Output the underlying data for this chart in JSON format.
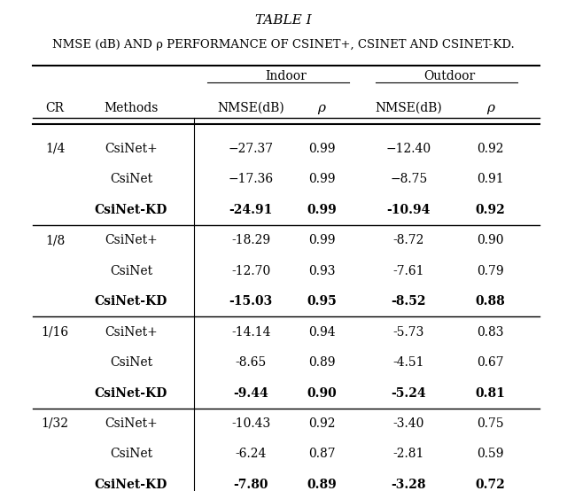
{
  "title": "TABLE I",
  "subtitle": "NMSE (dB) AND ρ PERFORMANCE OF CSINET+, CSINET AND CSINET-KD.",
  "col_headers": [
    "CR",
    "Methods",
    "Indoor\nNMSE(dB)",
    "Indoor\nρ",
    "Outdoor\nNMSE(dB)",
    "Outdoor\nρ"
  ],
  "group_headers": [
    {
      "label": "Indoor",
      "cols": [
        2,
        3
      ]
    },
    {
      "label": "Outdoor",
      "cols": [
        4,
        5
      ]
    }
  ],
  "rows": [
    {
      "cr": "1/4",
      "method": "CsiNet+",
      "in_nmse": "−27.37",
      "in_rho": "0.99",
      "out_nmse": "−12.40",
      "out_rho": "0.92",
      "bold": false
    },
    {
      "cr": "",
      "method": "CsiNet",
      "in_nmse": "−17.36",
      "in_rho": "0.99",
      "out_nmse": "−8.75",
      "out_rho": "0.91",
      "bold": false
    },
    {
      "cr": "",
      "method": "CsiNet-KD",
      "in_nmse": "-24.91",
      "in_rho": "0.99",
      "out_nmse": "-10.94",
      "out_rho": "0.92",
      "bold": true
    },
    {
      "cr": "1/8",
      "method": "CsiNet+",
      "in_nmse": "-18.29",
      "in_rho": "0.99",
      "out_nmse": "-8.72",
      "out_rho": "0.90",
      "bold": false
    },
    {
      "cr": "",
      "method": "CsiNet",
      "in_nmse": "-12.70",
      "in_rho": "0.93",
      "out_nmse": "-7.61",
      "out_rho": "0.79",
      "bold": false
    },
    {
      "cr": "",
      "method": "CsiNet-KD",
      "in_nmse": "-15.03",
      "in_rho": "0.95",
      "out_nmse": "-8.52",
      "out_rho": "0.88",
      "bold": true
    },
    {
      "cr": "1/16",
      "method": "CsiNet+",
      "in_nmse": "-14.14",
      "in_rho": "0.94",
      "out_nmse": "-5.73",
      "out_rho": "0.83",
      "bold": false
    },
    {
      "cr": "",
      "method": "CsiNet",
      "in_nmse": "-8.65",
      "in_rho": "0.89",
      "out_nmse": "-4.51",
      "out_rho": "0.67",
      "bold": false
    },
    {
      "cr": "",
      "method": "CsiNet-KD",
      "in_nmse": "-9.44",
      "in_rho": "0.90",
      "out_nmse": "-5.24",
      "out_rho": "0.81",
      "bold": true
    },
    {
      "cr": "1/32",
      "method": "CsiNet+",
      "in_nmse": "-10.43",
      "in_rho": "0.92",
      "out_nmse": "-3.40",
      "out_rho": "0.75",
      "bold": false
    },
    {
      "cr": "",
      "method": "CsiNet",
      "in_nmse": "-6.24",
      "in_rho": "0.87",
      "out_nmse": "-2.81",
      "out_rho": "0.59",
      "bold": false
    },
    {
      "cr": "",
      "method": "CsiNet-KD",
      "in_nmse": "-7.80",
      "in_rho": "0.89",
      "out_nmse": "-3.28",
      "out_rho": "0.72",
      "bold": true
    }
  ],
  "background_color": "#ffffff",
  "text_color": "#000000"
}
